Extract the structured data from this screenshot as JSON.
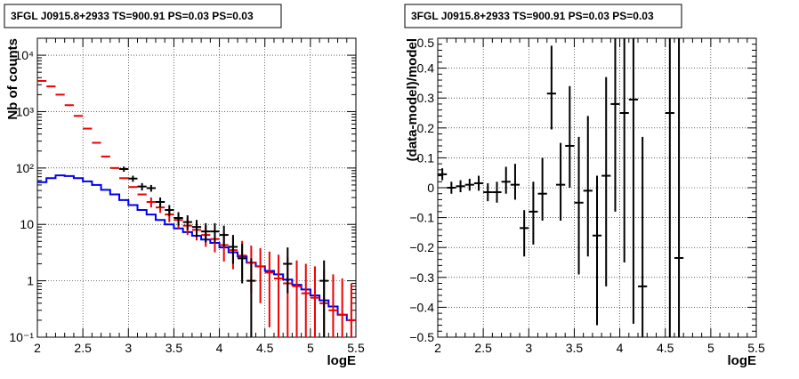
{
  "chart_data": [
    {
      "type": "scatter",
      "title": "3FGL J0915.8+2933 TS=900.91 PS=0.03 PS=0.03",
      "xlabel": "logE",
      "ylabel": "Nb of counts",
      "xlim": [
        2,
        5.5
      ],
      "ylim": [
        0.1,
        20000
      ],
      "yscale": "log",
      "grid": true,
      "x_ticks": [
        2,
        2.5,
        3,
        3.5,
        4,
        4.5,
        5,
        5.5
      ],
      "x_tick_labels": [
        "2",
        "2.5",
        "3",
        "3.5",
        "4",
        "4.5",
        "5",
        "5.5"
      ],
      "y_ticks": [
        0.1,
        1,
        10,
        100,
        1000,
        10000
      ],
      "y_tick_labels": [
        "10⁻¹",
        "1",
        "10",
        "10²",
        "10³",
        "10⁴"
      ],
      "series": [
        {
          "style": "step-line",
          "color": "#0000ee",
          "x": [
            2.05,
            2.15,
            2.25,
            2.35,
            2.45,
            2.55,
            2.65,
            2.75,
            2.85,
            2.95,
            3.05,
            3.15,
            3.25,
            3.35,
            3.45,
            3.55,
            3.65,
            3.75,
            3.85,
            3.95,
            4.05,
            4.15,
            4.25,
            4.35,
            4.45,
            4.55,
            4.65,
            4.75,
            4.85,
            4.95,
            5.05,
            5.15,
            5.25,
            5.35,
            5.45
          ],
          "y": [
            56,
            66,
            74,
            72,
            66,
            58,
            50,
            41,
            34,
            27,
            22,
            18,
            15,
            12,
            10,
            8.5,
            7.3,
            6.3,
            5.4,
            4.7,
            3.9,
            3.2,
            2.7,
            2.1,
            1.8,
            1.5,
            1.3,
            1.05,
            0.85,
            0.7,
            0.55,
            0.45,
            0.35,
            0.25,
            0.2
          ]
        },
        {
          "style": "error-bars",
          "color": "#ee0000",
          "x": [
            2.05,
            2.15,
            2.25,
            2.35,
            2.45,
            2.55,
            2.65,
            2.75,
            2.85,
            2.95,
            3.05,
            3.15,
            3.25,
            3.35,
            3.45,
            3.55,
            3.65,
            3.75,
            3.85,
            3.95,
            4.05,
            4.15,
            4.25,
            4.35,
            4.45,
            4.55,
            4.65,
            4.75,
            4.85,
            4.95,
            5.05,
            5.15,
            5.25,
            5.35,
            5.45
          ],
          "y": [
            3500,
            2800,
            2000,
            1300,
            840,
            500,
            280,
            160,
            100,
            66,
            46,
            34,
            25,
            20,
            15,
            12,
            9.5,
            8,
            6.5,
            5.5,
            4.3,
            3.5,
            2.8,
            2.1,
            1.8,
            1.4,
            1.1,
            0.9,
            0.8,
            0.6,
            0.5,
            0.4,
            0.3,
            0.25,
            0.2
          ],
          "y_err_low": [
            0,
            0,
            0,
            0,
            0,
            0,
            0,
            0,
            0,
            0,
            0,
            0,
            5,
            4,
            4,
            3.5,
            3,
            2.8,
            2.5,
            2.3,
            2.1,
            1.9,
            1.7,
            1.5,
            1.4,
            1.25,
            1.05,
            0.85,
            0.75,
            0.6,
            0.5,
            0.4,
            0.3,
            0.25,
            0.2
          ],
          "y_err_high": [
            0,
            0,
            0,
            0,
            0,
            0,
            0,
            0,
            0,
            0,
            0,
            0,
            5,
            4.5,
            4,
            3.5,
            3.5,
            3.2,
            3,
            2.8,
            2.7,
            2.5,
            2.3,
            2.1,
            2,
            1.9,
            1.8,
            1.7,
            1.5,
            1.4,
            1.3,
            1.15,
            1,
            0.85,
            0.7
          ]
        },
        {
          "style": "error-bars",
          "color": "#000000",
          "x": [
            2.95,
            3.05,
            3.15,
            3.25,
            3.35,
            3.45,
            3.55,
            3.65,
            3.75,
            3.85,
            3.95,
            4.05,
            4.15,
            4.25,
            4.35,
            4.75,
            5.15
          ],
          "y": [
            96,
            65,
            47,
            44,
            25,
            18,
            13,
            11,
            9,
            7.5,
            7.5,
            6.5,
            4,
            2.5,
            1,
            2,
            1
          ],
          "y_err_low": [
            10,
            8,
            7,
            6,
            5,
            4,
            3.5,
            3,
            3,
            2.7,
            2.7,
            2.5,
            2,
            1.6,
            0.99,
            1.4,
            0.99
          ],
          "y_err_high": [
            10,
            8,
            7,
            6,
            5,
            4,
            3.5,
            3.5,
            3,
            3,
            3,
            3,
            2.5,
            2,
            1.5,
            1.9,
            1.3
          ]
        }
      ]
    },
    {
      "type": "scatter",
      "title": "3FGL J0915.8+2933 TS=900.91 PS=0.03 PS=0.03",
      "xlabel": "logE",
      "ylabel": "(data-model)/model",
      "xlim": [
        2,
        5.5
      ],
      "ylim": [
        -0.5,
        0.5
      ],
      "grid": true,
      "x_ticks": [
        2,
        2.5,
        3,
        3.5,
        4,
        4.5,
        5,
        5.5
      ],
      "x_tick_labels": [
        "2",
        "2.5",
        "3",
        "3.5",
        "4",
        "4.5",
        "5",
        "5.5"
      ],
      "y_ticks": [
        -0.5,
        -0.4,
        -0.3,
        -0.2,
        -0.1,
        0,
        0.1,
        0.2,
        0.3,
        0.4,
        0.5
      ],
      "y_tick_labels": [
        "−0.5",
        "−0.4",
        "−0.3",
        "−0.2",
        "−0.1",
        "0",
        "0.1",
        "0.2",
        "0.3",
        "0.4",
        "0.5"
      ],
      "series": [
        {
          "style": "error-bars",
          "color": "#000000",
          "x": [
            2.05,
            2.15,
            2.25,
            2.35,
            2.45,
            2.55,
            2.65,
            2.75,
            2.85,
            2.95,
            3.05,
            3.15,
            3.25,
            3.35,
            3.45,
            3.55,
            3.65,
            3.75,
            3.85,
            3.95,
            4.05,
            4.15,
            4.25,
            4.55,
            4.65
          ],
          "y": [
            0.045,
            0.0,
            0.005,
            0.01,
            0.015,
            -0.015,
            -0.015,
            0.02,
            0.01,
            -0.135,
            -0.08,
            -0.02,
            0.315,
            0.01,
            0.14,
            -0.05,
            -0.01,
            -0.16,
            0.04,
            0.28,
            0.25,
            0.295,
            -0.33,
            0.25,
            -0.235
          ],
          "y_err_low": [
            0.02,
            0.02,
            0.02,
            0.02,
            0.025,
            0.03,
            0.035,
            0.04,
            0.05,
            0.095,
            0.11,
            0.09,
            0.12,
            0.12,
            0.14,
            0.24,
            0.22,
            0.3,
            0.37,
            0.36,
            0.5,
            0.75,
            0.5,
            0.8,
            0.3
          ],
          "y_err_high": [
            0.02,
            0.02,
            0.02,
            0.02,
            0.025,
            0.03,
            0.035,
            0.05,
            0.07,
            0.06,
            0.1,
            0.12,
            0.16,
            0.14,
            0.2,
            0.22,
            0.25,
            0.2,
            0.33,
            0.3,
            0.6,
            0.5,
            0.5,
            0.6,
            0.8
          ]
        }
      ]
    }
  ]
}
